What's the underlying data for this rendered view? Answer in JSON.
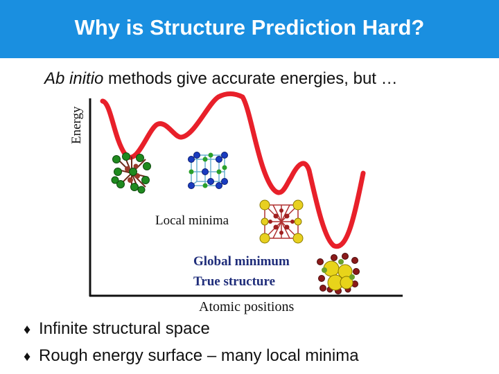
{
  "slide": {
    "title": "Why is Structure Prediction Hard?",
    "subtitle_italic": "Ab initio",
    "subtitle_rest": " methods give accurate energies, but …"
  },
  "plot": {
    "y_axis_label": "Energy",
    "x_axis_label": "Atomic positions",
    "local_minima_label": "Local minima",
    "global_minimum_label": "Global minimum",
    "true_structure_label": "True structure",
    "curve_color": "#e8202a",
    "axis_color": "#111111"
  },
  "bullets": {
    "marker": "♦",
    "items": [
      "Infinite structural space",
      "Rough energy surface – many local minima"
    ]
  },
  "colors": {
    "title_bar": "#1a8fe0",
    "label_blue": "#1f2d7a"
  },
  "icons": [
    "crystal-structure-green-icon",
    "crystal-structure-blue-cubic-icon",
    "crystal-structure-yellow-cubic-icon",
    "crystal-structure-yellow-large-icon"
  ]
}
